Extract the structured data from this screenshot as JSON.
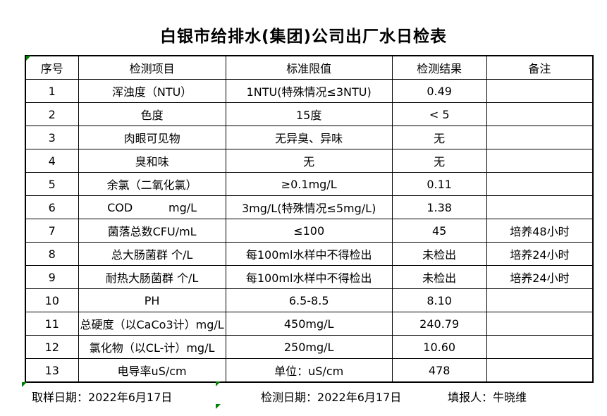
{
  "title": "白银市给排水(集团)公司出厂水日检表",
  "table": {
    "headers": [
      "序号",
      "检测项目",
      "标准限值",
      "检测结果",
      "备注"
    ],
    "rows": [
      {
        "no": "1",
        "item": "浑浊度（NTU）",
        "standard": "1NTU(特殊情况≤3NTU)",
        "result": "0.49",
        "note": ""
      },
      {
        "no": "2",
        "item": "色度",
        "standard": "15度",
        "result": "< 5",
        "note": ""
      },
      {
        "no": "3",
        "item": "肉眼可见物",
        "standard": "无异臭、异味",
        "result": "无",
        "note": ""
      },
      {
        "no": "4",
        "item": "臭和味",
        "standard": "无",
        "result": "无",
        "note": ""
      },
      {
        "no": "5",
        "item": "余氯（二氧化氯）",
        "standard": "≥0.1mg/L",
        "result": "0.11",
        "note": ""
      },
      {
        "no": "6",
        "item": "COD          mg/L",
        "standard": "3mg/L(特殊情况≤5mg/L)",
        "result": "1.38",
        "note": ""
      },
      {
        "no": "7",
        "item": "菌落总数CFU/mL",
        "standard": "≤100",
        "result": "45",
        "note": "培养48小时"
      },
      {
        "no": "8",
        "item": "总大肠菌群 个/L",
        "standard": "每100ml水样中不得检出",
        "result": "未检出",
        "note": "培养24小时"
      },
      {
        "no": "9",
        "item": "耐热大肠菌群 个/L",
        "standard": "每100ml水样中不得检出",
        "result": "未检出",
        "note": "培养24小时"
      },
      {
        "no": "10",
        "item": "PH",
        "standard": "6.5-8.5",
        "result": "8.10",
        "note": ""
      },
      {
        "no": "11",
        "item": "总硬度（以CaCo3计）mg/L",
        "standard": "450mg/L",
        "result": "240.79",
        "note": ""
      },
      {
        "no": "12",
        "item": "氯化物（以CL-计）mg/L",
        "standard": "250mg/L",
        "result": "10.60",
        "note": ""
      },
      {
        "no": "13",
        "item": "电导率uS/cm",
        "standard": "单位：uS/cm",
        "result": "478",
        "note": ""
      }
    ]
  },
  "footer": {
    "sampling": {
      "label": "取样日期：",
      "value": "2022年6月17日"
    },
    "testing": {
      "label": "检测日期：",
      "value": "2022年6月17日"
    },
    "reporter": {
      "label": "填报人：",
      "value": "牛晓维"
    }
  },
  "icons": {
    "excel_flag": "green-corner-flag"
  },
  "colors": {
    "flag_green": "#008000",
    "border": "#000000",
    "text": "#000000",
    "background": "#ffffff"
  }
}
